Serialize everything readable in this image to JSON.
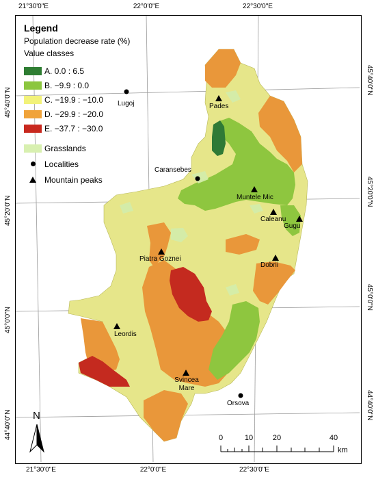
{
  "coordinates": {
    "top": [
      "21°30'0\"E",
      "22°0'0\"E",
      "22°30'0\"E"
    ],
    "bottom": [
      "21°30'0\"E",
      "22°0'0\"E",
      "22°30'0\"E"
    ],
    "left": [
      "45°40'0\"N",
      "45°20'0\"N",
      "45°0'0\"N",
      "44°40'0\"N"
    ],
    "right": [
      "45°40'0\"N",
      "45°20'0\"N",
      "45°0'0\"N",
      "44°40'0\"N"
    ]
  },
  "legend": {
    "title": "Legend",
    "subtitle": "Population decrease rate (%)",
    "classes_label": "Value classes",
    "classes": [
      {
        "label": "A. 0.0 : 6.5",
        "color": "#2e7d32"
      },
      {
        "label": "B. −9.9 : 0.0",
        "color": "#8cc63f"
      },
      {
        "label": "C. −19.9 : −10.0",
        "color": "#f2f27a"
      },
      {
        "label": "D. −29.9 : −20.0",
        "color": "#f0a33a"
      },
      {
        "label": "E. −37.7 : −30.0",
        "color": "#c8281e"
      }
    ],
    "grasslands": {
      "label": "Grasslands",
      "color": "#d8f0b0"
    },
    "localities": {
      "label": "Localities",
      "icon": "dot-icon"
    },
    "peaks": {
      "label": "Mountain peaks",
      "icon": "triangle-icon"
    }
  },
  "places": {
    "localities": [
      "Lugoj",
      "Caransebes",
      "Orsova"
    ],
    "peaks": [
      "Pades",
      "Muntele Mic",
      "Caleanu",
      "Gugu",
      "Piatra Goznei",
      "Dobrii",
      "Leordis",
      "Svincea Mare"
    ]
  },
  "scale_bar": {
    "ticks": [
      "0",
      "10",
      "20",
      "40"
    ],
    "unit": "km"
  },
  "north_arrow": {
    "letter": "N"
  }
}
